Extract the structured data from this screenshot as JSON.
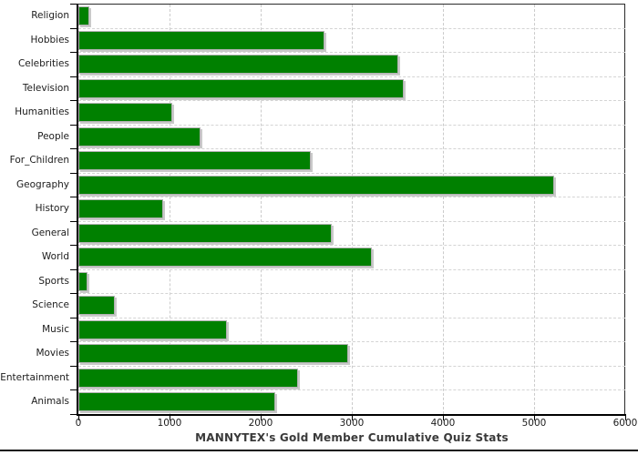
{
  "chart_data": {
    "type": "bar",
    "orientation": "horizontal",
    "title": "MANNYTEX's Gold Member Cumulative Quiz Stats",
    "categories": [
      "Religion",
      "Hobbies",
      "Celebrities",
      "Television",
      "Humanities",
      "People",
      "For_Children",
      "Geography",
      "History",
      "General",
      "World",
      "Sports",
      "Science",
      "Music",
      "Movies",
      "Entertainment",
      "Animals"
    ],
    "values": [
      120,
      2700,
      3510,
      3570,
      1030,
      1340,
      2550,
      5220,
      930,
      2780,
      3220,
      100,
      400,
      1630,
      2960,
      2410,
      2160
    ],
    "xlabel": "",
    "ylabel": "",
    "xlim": [
      0,
      6000
    ],
    "x_ticks": [
      0,
      1000,
      2000,
      3000,
      4000,
      5000,
      6000
    ],
    "x_tick_labels": [
      "0",
      "1000",
      "2000",
      "3000",
      "4000",
      "5000",
      "6000"
    ],
    "grid": "dashed",
    "legend": "none",
    "colors": {
      "bar_fill": "#008000",
      "bar_border": "#b2b2b2",
      "bar_shadow": "#c9c9c9",
      "grid_line": "#cccccc",
      "axis_line": "#000000",
      "tick_label": "#1c1c1c",
      "title_text": "#3a3a3a",
      "background": "#ffffff",
      "bottom_rule": "#141414"
    }
  }
}
